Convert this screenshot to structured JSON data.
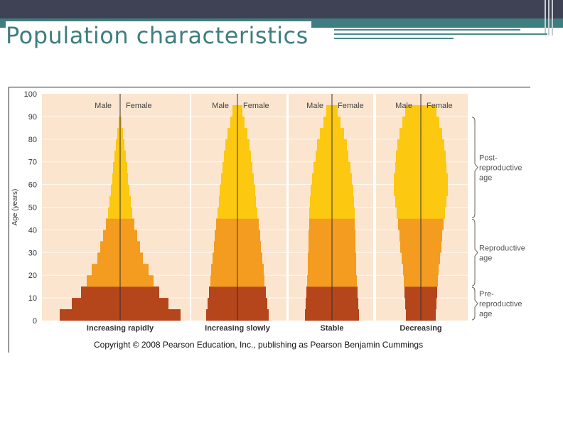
{
  "slide": {
    "title": "Population characteristics"
  },
  "chart_data": {
    "type": "bar",
    "subtype": "population-pyramid",
    "ylabel": "Age (years)",
    "ylim": [
      0,
      100
    ],
    "y_ticks": [
      "0",
      "10",
      "20",
      "30",
      "40",
      "50",
      "60",
      "70",
      "80",
      "90",
      "100"
    ],
    "sex_labels": {
      "male": "Male",
      "female": "Female"
    },
    "value_unit": "relative share of population per 5-year age group (estimated from bar widths)",
    "age_groups": [
      "0-4",
      "5-9",
      "10-14",
      "15-19",
      "20-24",
      "25-29",
      "30-34",
      "35-39",
      "40-44",
      "45-49",
      "50-54",
      "55-59",
      "60-64",
      "65-69",
      "70-74",
      "75-79",
      "80-84",
      "85-89",
      "90-94",
      "95-99"
    ],
    "age_brackets": [
      {
        "label": "Post-reproductive age",
        "from": 45,
        "to": 90
      },
      {
        "label": "Reproductive age",
        "from": 15,
        "to": 45
      },
      {
        "label": "Pre-reproductive age",
        "from": 0,
        "to": 15
      }
    ],
    "series": [
      {
        "name": "Increasing rapidly",
        "values": [
          85,
          68,
          55,
          47,
          40,
          32,
          28,
          24,
          20,
          17,
          15,
          13,
          11,
          10,
          8,
          6,
          4,
          2,
          0,
          0
        ]
      },
      {
        "name": "Increasing slowly",
        "values": [
          44,
          42,
          40,
          38,
          37,
          35,
          33,
          32,
          30,
          28,
          26,
          25,
          23,
          21,
          19,
          17,
          14,
          10,
          7,
          0
        ]
      },
      {
        "name": "Stable",
        "values": [
          38,
          37,
          36,
          35,
          34,
          34,
          33,
          33,
          32,
          32,
          31,
          30,
          28,
          26,
          23,
          21,
          17,
          12,
          8,
          0
        ]
      },
      {
        "name": "Decreasing",
        "values": [
          21,
          22,
          23,
          24,
          25,
          27,
          29,
          30,
          32,
          34,
          36,
          38,
          38,
          36,
          35,
          33,
          30,
          26,
          22,
          0
        ]
      }
    ],
    "colors": {
      "pre_reproductive": "#b5451b",
      "reproductive": "#f39c1f",
      "post_reproductive": "#fcc810",
      "panel_background": "#fbe5cf",
      "gridline": "#fffaf3",
      "center_axis": "#333333"
    },
    "copyright": "Copyright © 2008 Pearson Education, Inc., publishing as Pearson Benjamin Cummings"
  }
}
